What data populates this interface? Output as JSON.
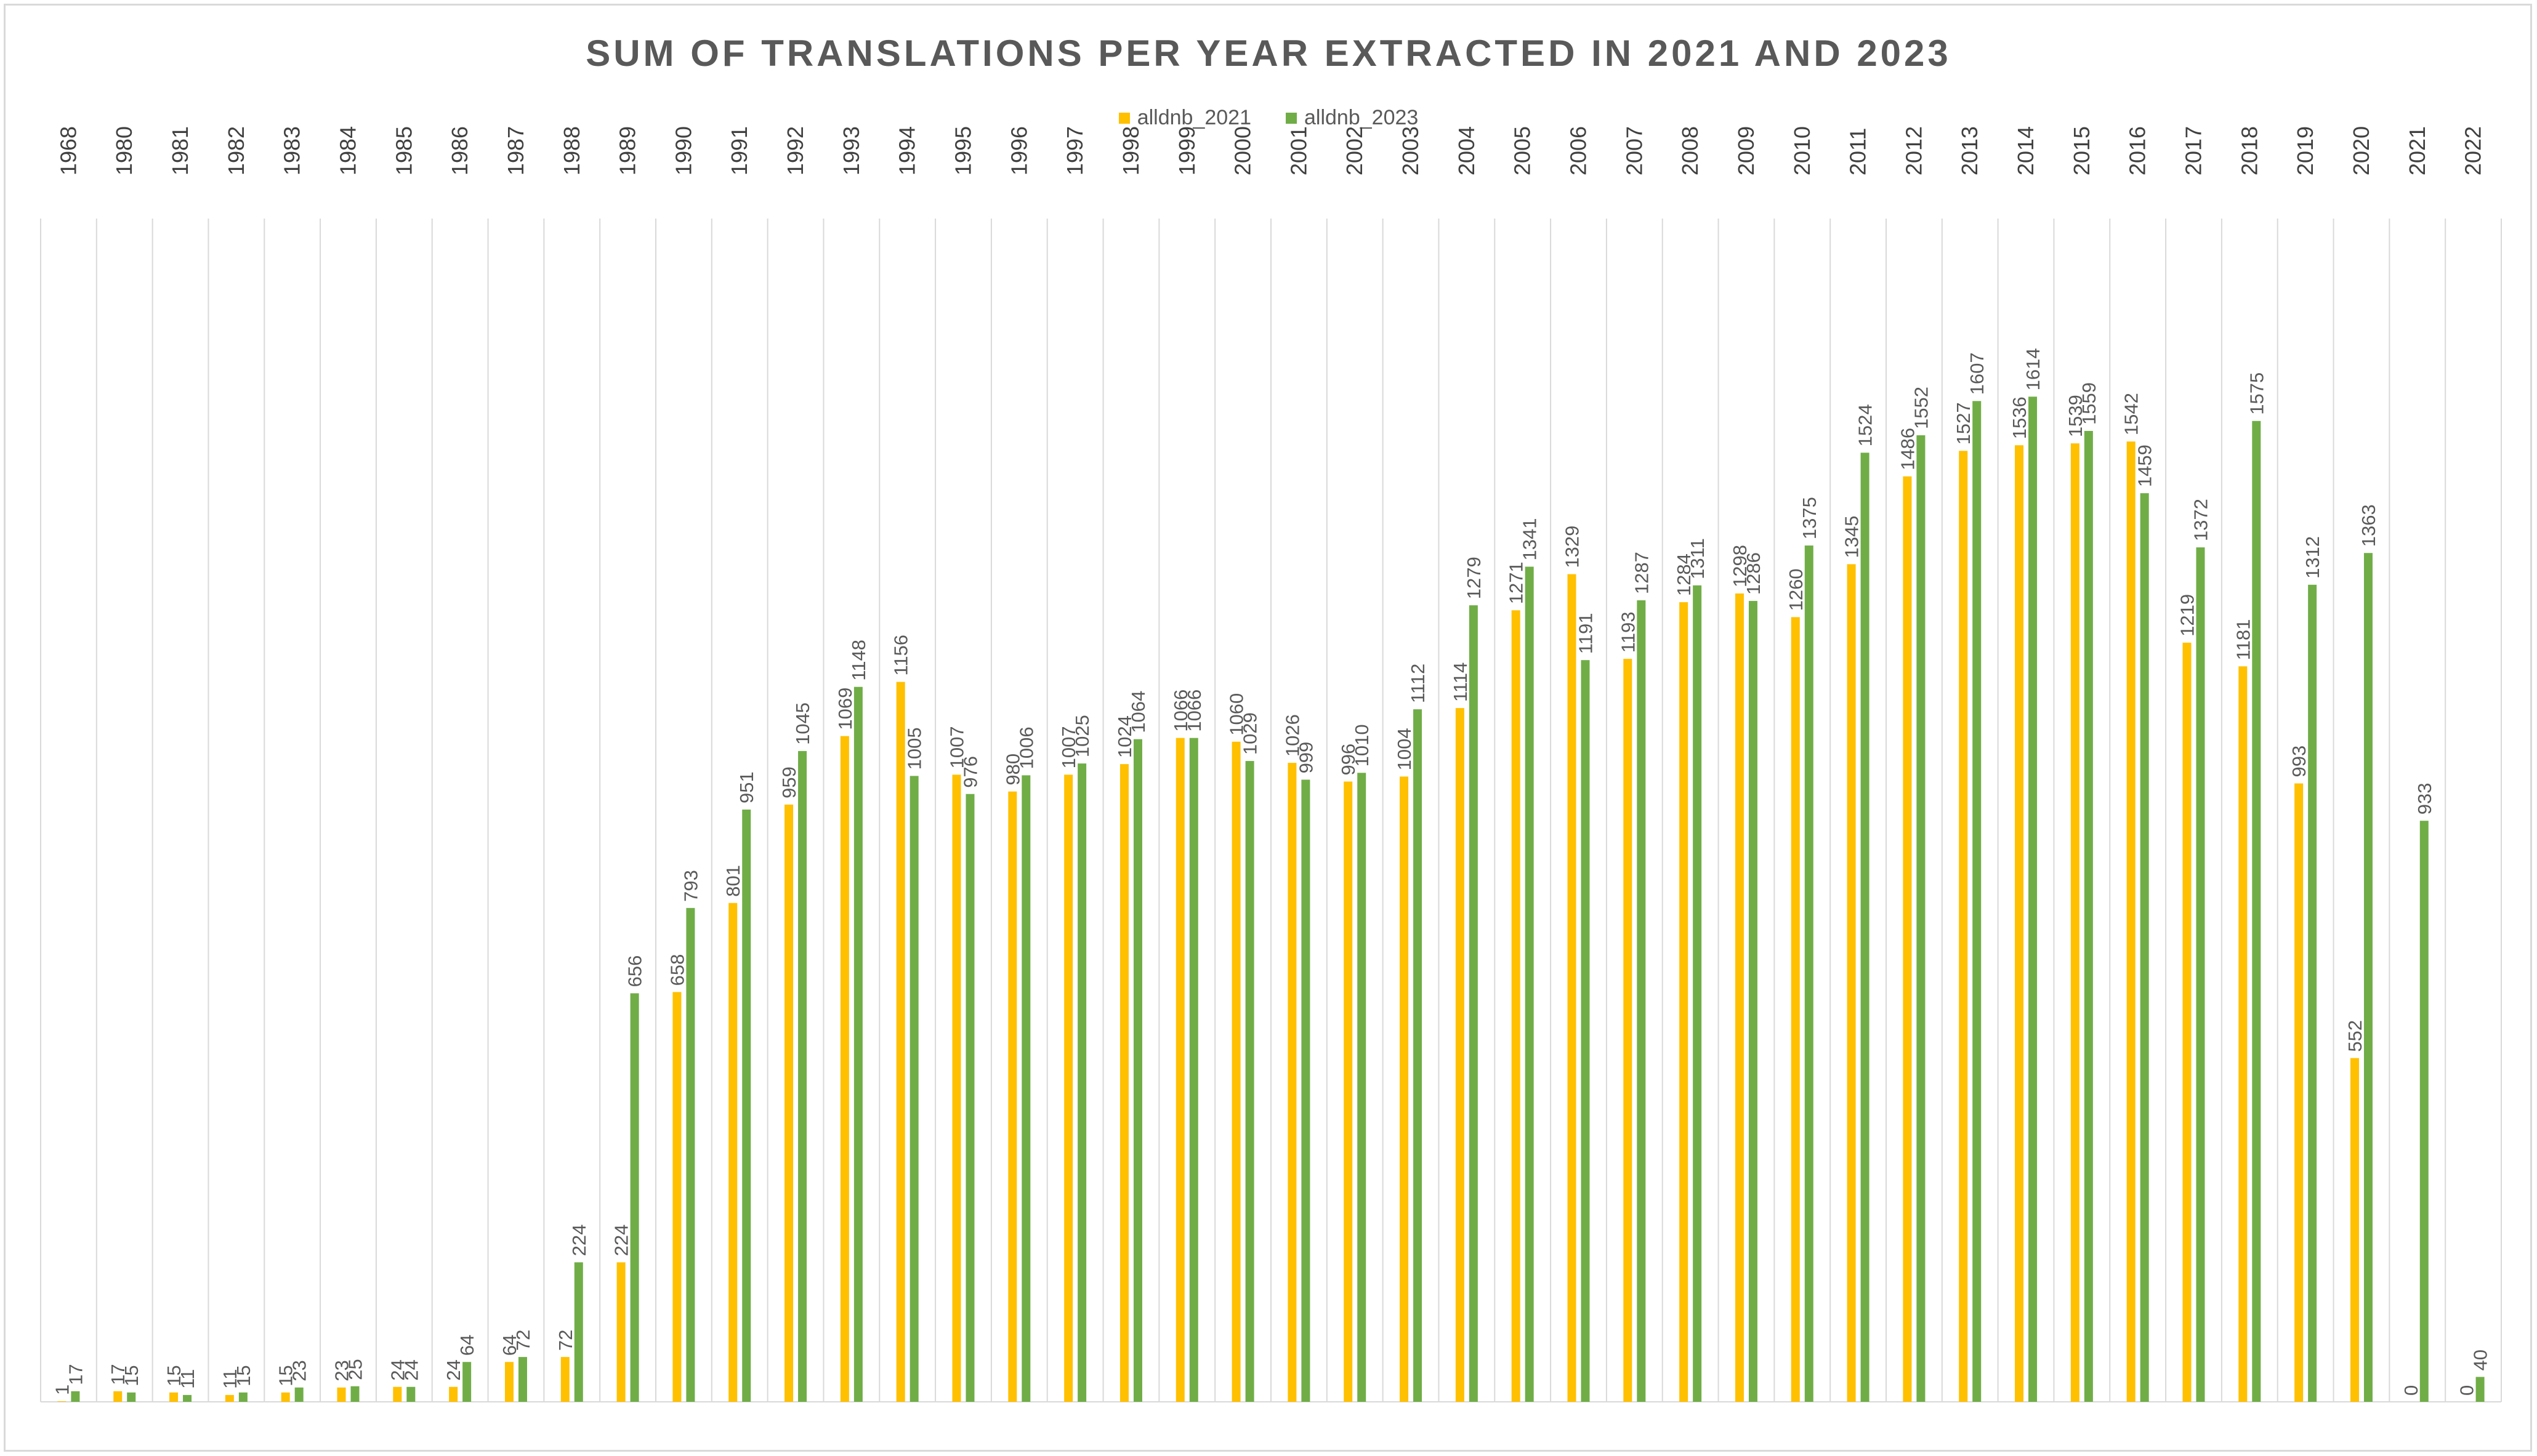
{
  "chart_data": {
    "type": "bar",
    "title": "SUM OF TRANSLATIONS PER YEAR EXTRACTED IN 2021 AND 2023",
    "xlabel": "",
    "ylabel": "",
    "x_axis_position": "top",
    "ylim": [
      0,
      1900
    ],
    "grid": "vertical category separators",
    "legend_position": "top-center",
    "categories": [
      "1968",
      "1980",
      "1981",
      "1982",
      "1983",
      "1984",
      "1985",
      "1986",
      "1987",
      "1988",
      "1989",
      "1990",
      "1991",
      "1992",
      "1993",
      "1994",
      "1995",
      "1996",
      "1997",
      "1998",
      "1999",
      "2000",
      "2001",
      "2002",
      "2003",
      "2004",
      "2005",
      "2006",
      "2007",
      "2008",
      "2009",
      "2010",
      "2011",
      "2012",
      "2013",
      "2014",
      "2015",
      "2016",
      "2017",
      "2018",
      "2019",
      "2020",
      "2021",
      "2022"
    ],
    "series": [
      {
        "name": "alldnb_2021",
        "color": "#FFC000",
        "values": [
          1,
          17,
          15,
          11,
          15,
          23,
          24,
          24,
          64,
          72,
          224,
          658,
          801,
          959,
          1069,
          1156,
          1007,
          980,
          1007,
          1024,
          1066,
          1060,
          1026,
          996,
          1004,
          1114,
          1271,
          1329,
          1193,
          1284,
          1298,
          1260,
          1345,
          1486,
          1527,
          1536,
          1539,
          1542,
          1219,
          1181,
          993,
          552,
          0,
          0
        ]
      },
      {
        "name": "alldnb_2023",
        "color": "#70AD47",
        "values": [
          17,
          15,
          11,
          15,
          23,
          25,
          24,
          64,
          72,
          224,
          656,
          793,
          951,
          1045,
          1148,
          1005,
          976,
          1006,
          1025,
          1064,
          1066,
          1029,
          999,
          1010,
          1112,
          1279,
          1341,
          1191,
          1287,
          1311,
          1286,
          1375,
          1524,
          1552,
          1607,
          1614,
          1559,
          1459,
          1372,
          1575,
          1312,
          1363,
          933,
          40
        ]
      }
    ]
  }
}
